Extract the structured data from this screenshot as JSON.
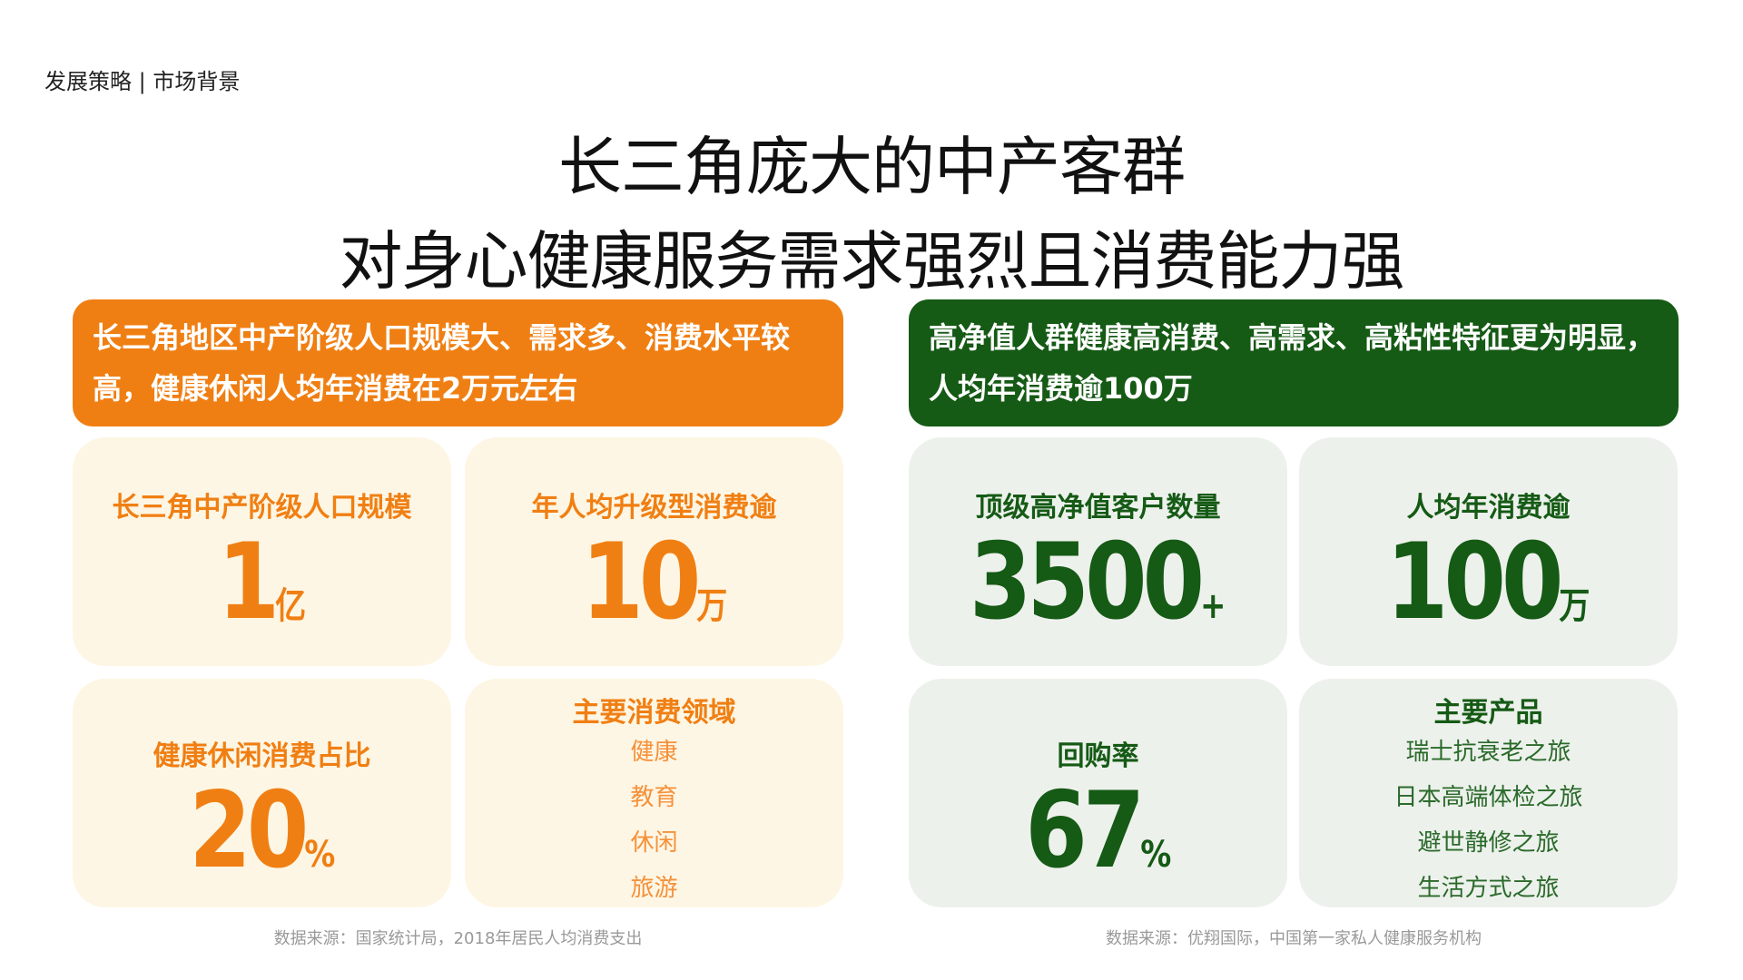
{
  "breadcrumb": "发展策略 | 市场背景",
  "title_line1": "长三角庞大的中产客群",
  "title_line2": "对身心健康服务需求强烈且消费能力强",
  "left": {
    "header": "长三角地区中产阶级人口规模大、需求多、消费水平较高，健康休闲人均年消费在2万元左右",
    "cards": [
      {
        "label": "长三角中产阶级人口规模",
        "value": "1",
        "unit": "亿"
      },
      {
        "label": "年人均升级型消费逾",
        "value": "10",
        "unit": "万"
      },
      {
        "label": "健康休闲消费占比",
        "value": "20",
        "unit": "%"
      }
    ],
    "list": {
      "title": "主要消费领域",
      "items": [
        "健康",
        "教育",
        "休闲",
        "旅游"
      ]
    },
    "source": "数据来源：国家统计局，2018年居民人均消费支出"
  },
  "right": {
    "header": "高净值人群健康高消费、高需求、高粘性特征更为明显，人均年消费逾100万",
    "cards": [
      {
        "label": "顶级高净值客户数量",
        "value": "3500",
        "unit": "+"
      },
      {
        "label": "人均年消费逾",
        "value": "100",
        "unit": "万"
      },
      {
        "label": "回购率",
        "value": "67",
        "unit": "%"
      }
    ],
    "list": {
      "title": "主要产品",
      "items": [
        "瑞士抗衰老之旅",
        "日本高端体检之旅",
        "避世静修之旅",
        "生活方式之旅"
      ]
    },
    "source": "数据来源：优翔国际，中国第一家私人健康服务机构"
  },
  "colors": {
    "orange": "#f07f13",
    "green": "#155a15",
    "cream": "#fef6e4",
    "light_green": "#edf1ec"
  }
}
